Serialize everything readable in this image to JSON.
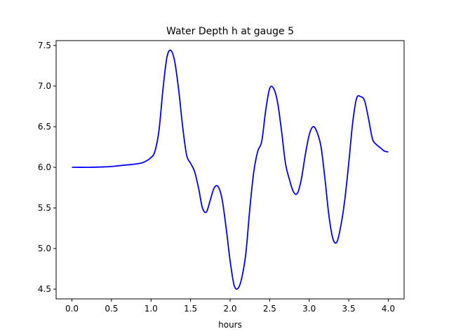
{
  "chart_data": {
    "type": "line",
    "title": "Water Depth h at gauge 5",
    "xlabel": "hours",
    "ylabel": "",
    "xlim": [
      -0.2,
      4.2
    ],
    "ylim": [
      4.38,
      7.56
    ],
    "xticks": [
      0.0,
      0.5,
      1.0,
      1.5,
      2.0,
      2.5,
      3.0,
      3.5,
      4.0
    ],
    "xtick_labels": [
      "0.0",
      "0.5",
      "1.0",
      "1.5",
      "2.0",
      "2.5",
      "3.0",
      "3.5",
      "4.0"
    ],
    "yticks": [
      4.5,
      5.0,
      5.5,
      6.0,
      6.5,
      7.0,
      7.5
    ],
    "ytick_labels": [
      "4.5",
      "5.0",
      "5.5",
      "6.0",
      "6.5",
      "7.0",
      "7.5"
    ],
    "grid": false,
    "legend": "none",
    "series": [
      {
        "color": "#0000ff",
        "x": [
          0.0,
          0.2,
          0.4,
          0.5,
          0.6,
          0.7,
          0.8,
          0.9,
          1.0,
          1.05,
          1.1,
          1.15,
          1.2,
          1.25,
          1.3,
          1.35,
          1.4,
          1.45,
          1.5,
          1.55,
          1.6,
          1.65,
          1.7,
          1.75,
          1.8,
          1.85,
          1.9,
          1.95,
          2.0,
          2.05,
          2.1,
          2.15,
          2.2,
          2.25,
          2.3,
          2.35,
          2.4,
          2.45,
          2.5,
          2.55,
          2.6,
          2.65,
          2.7,
          2.75,
          2.8,
          2.85,
          2.9,
          2.95,
          3.0,
          3.05,
          3.1,
          3.15,
          3.2,
          3.25,
          3.3,
          3.35,
          3.4,
          3.45,
          3.5,
          3.55,
          3.6,
          3.65,
          3.7,
          3.75,
          3.8,
          3.85,
          3.9,
          3.95,
          4.0
        ],
        "values": [
          6.0,
          6.0,
          6.005,
          6.01,
          6.02,
          6.03,
          6.04,
          6.06,
          6.12,
          6.2,
          6.45,
          6.95,
          7.35,
          7.44,
          7.3,
          6.95,
          6.5,
          6.15,
          6.05,
          5.95,
          5.75,
          5.5,
          5.45,
          5.6,
          5.75,
          5.76,
          5.6,
          5.25,
          4.85,
          4.55,
          4.51,
          4.65,
          4.95,
          5.5,
          5.95,
          6.2,
          6.32,
          6.7,
          6.97,
          6.97,
          6.8,
          6.45,
          6.05,
          5.85,
          5.7,
          5.68,
          5.85,
          6.15,
          6.4,
          6.5,
          6.43,
          6.25,
          5.85,
          5.4,
          5.12,
          5.08,
          5.28,
          5.6,
          6.05,
          6.55,
          6.85,
          6.87,
          6.82,
          6.6,
          6.35,
          6.28,
          6.24,
          6.2,
          6.19
        ]
      }
    ]
  }
}
